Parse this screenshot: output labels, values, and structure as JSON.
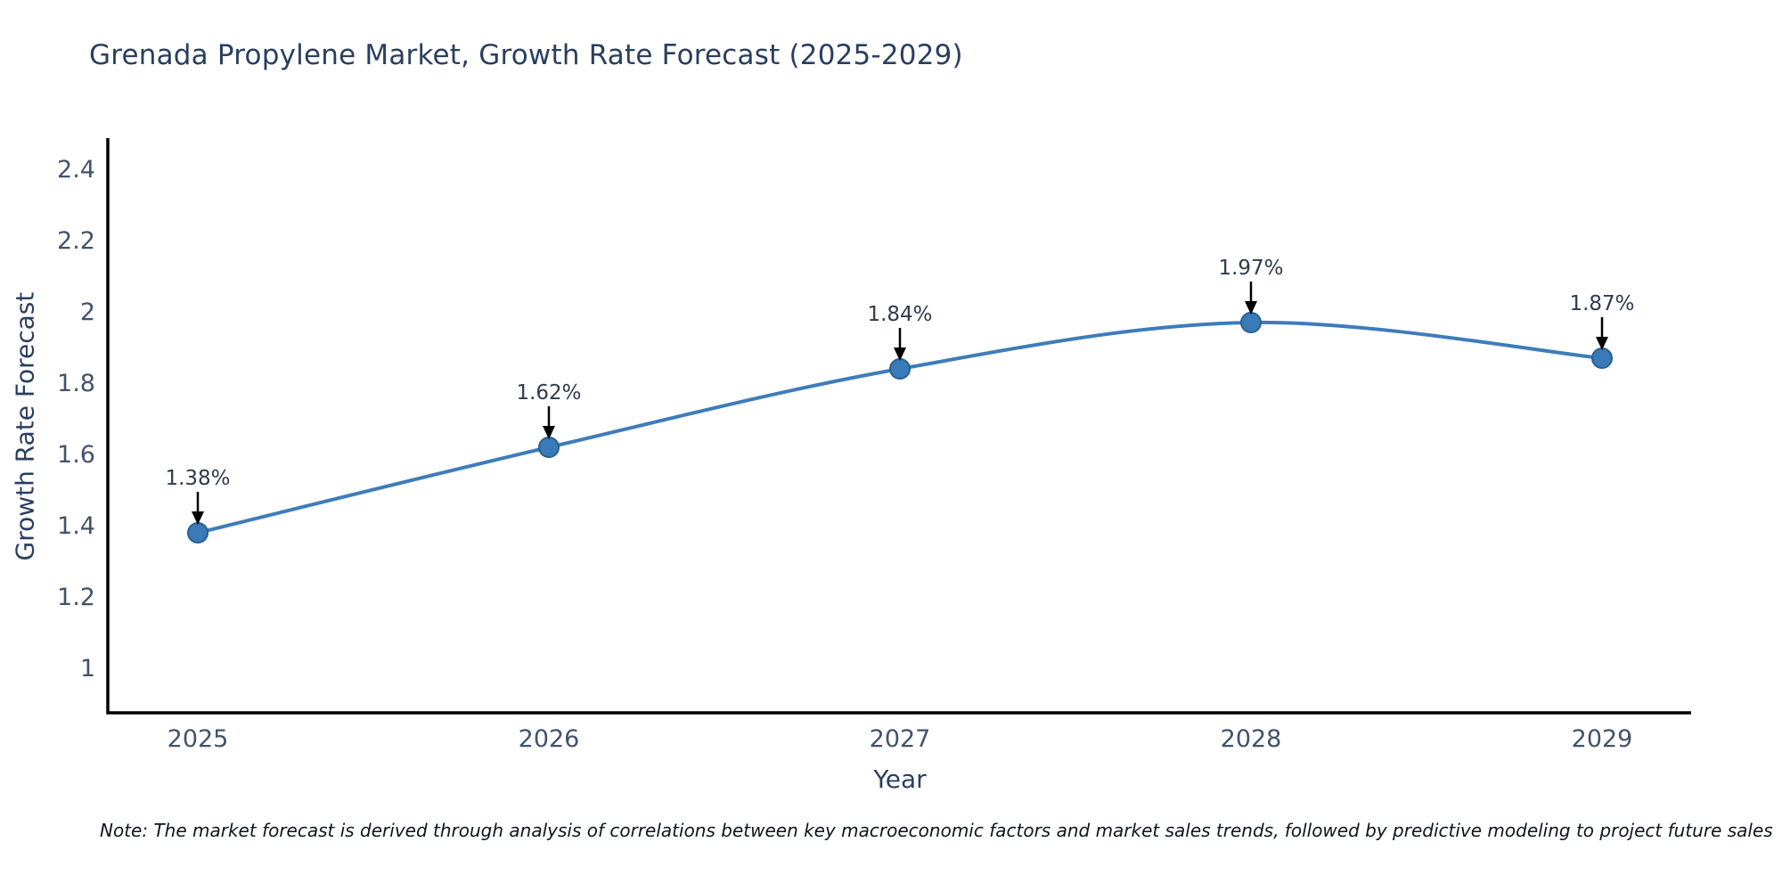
{
  "title": "Grenada Propylene Market, Growth Rate Forecast (2025-2029)",
  "footnote": "Note: The market forecast is derived through analysis of correlations between key macroeconomic factors and market sales trends, followed by predictive modeling to project future sales",
  "chart_data": {
    "type": "line",
    "title": "Grenada Propylene Market, Growth Rate Forecast (2025-2029)",
    "categories": [
      "2025",
      "2026",
      "2027",
      "2028",
      "2029"
    ],
    "series": [
      {
        "name": "Growth Rate Forecast",
        "values": [
          1.38,
          1.62,
          1.84,
          1.97,
          1.87
        ]
      }
    ],
    "point_labels": [
      "1.38%",
      "1.62%",
      "1.84%",
      "1.97%",
      "1.87%"
    ],
    "xlabel": "Year",
    "ylabel": "Growth Rate Forecast",
    "yticks": [
      2.4,
      2.2,
      2,
      1.8,
      1.6,
      1.4,
      1.2,
      1
    ],
    "ytick_labels": [
      "2.4",
      "2.2",
      "2",
      "1.8",
      "1.6",
      "1.4",
      "1.2",
      "1"
    ],
    "ylim": [
      0.875,
      2.49
    ],
    "grid": false,
    "legend_position": "none",
    "line_shape": "spline",
    "colors": {
      "line": "#3e7cba",
      "marker_fill": "#3a7ab8",
      "marker_edge": "#27608f",
      "axis": "#000000",
      "title_text": "#2a3f5f",
      "tick_text": "#42526b",
      "annotation_text": "#2f3b4e",
      "arrow": "#000000"
    }
  }
}
